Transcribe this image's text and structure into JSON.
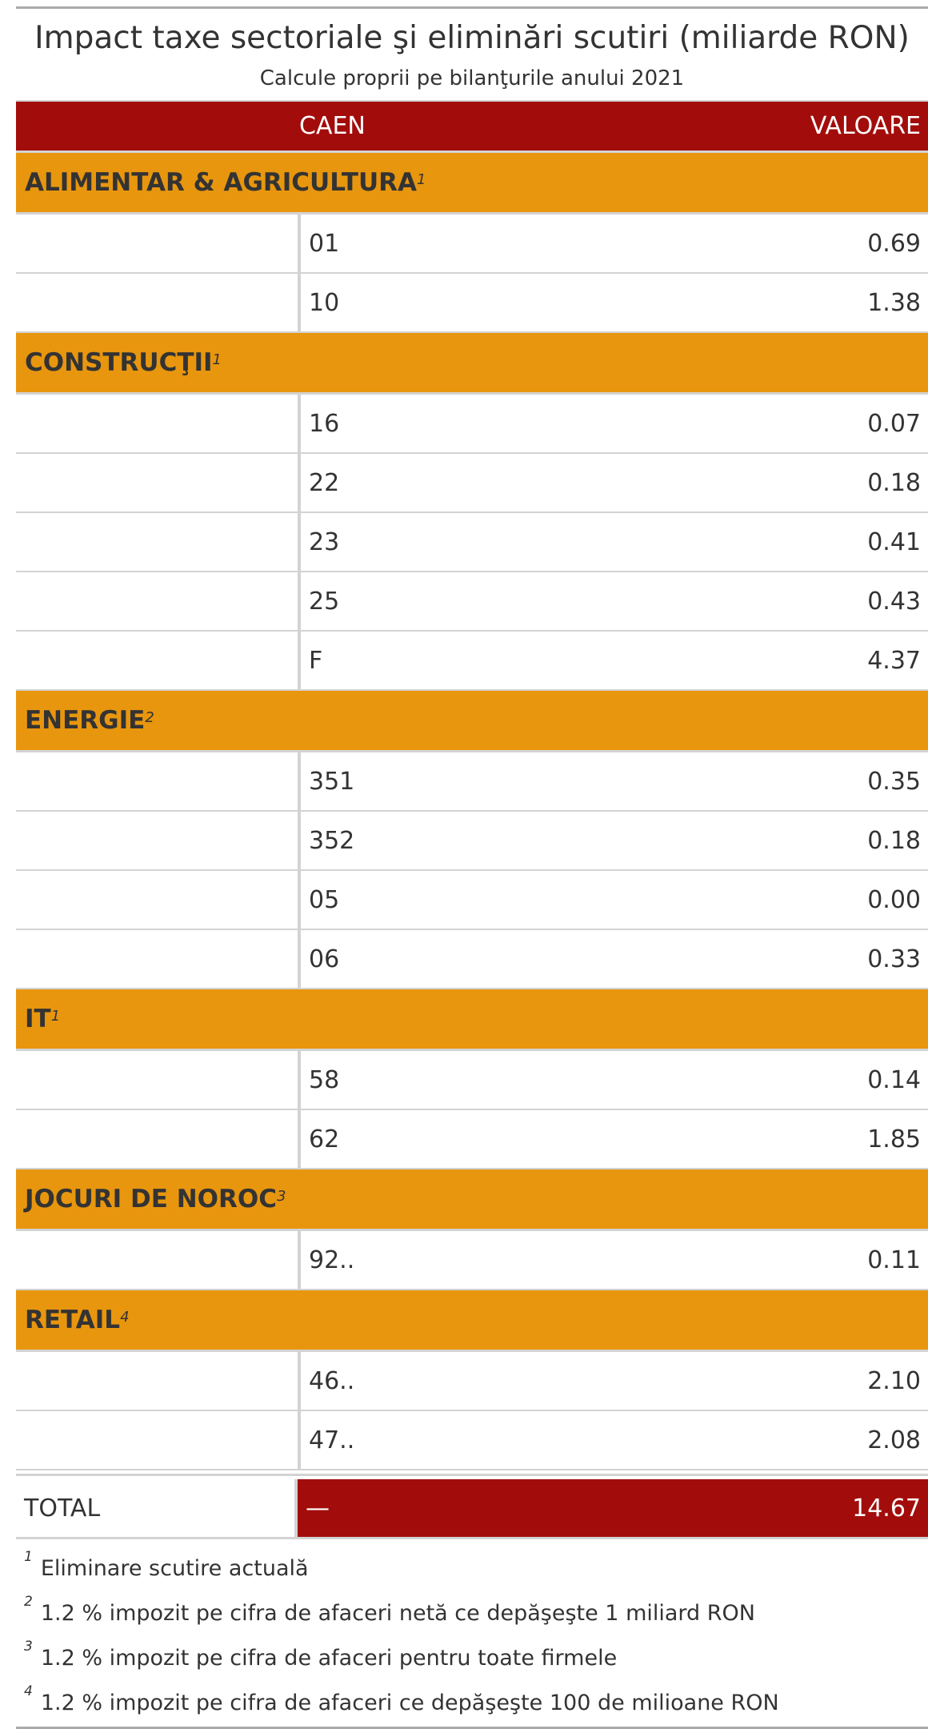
{
  "title": "Impact taxe sectoriale şi eliminări scutiri (miliarde RON)",
  "subtitle": "Calcule proprii pe bilanţurile anului 2021",
  "header": {
    "col_caen": "CAEN",
    "col_valoare": "VALOARE"
  },
  "colors": {
    "header_bg": "#a20d0b",
    "group_bg": "#e8960e",
    "total_bg": "#a20d0b"
  },
  "groups": [
    {
      "name": "ALIMENTAR & AGRICULTURA",
      "note": "1",
      "rows": [
        {
          "caen": "01",
          "value": "0.69"
        },
        {
          "caen": "10",
          "value": "1.38"
        }
      ]
    },
    {
      "name": "CONSTRUCŢII",
      "note": "1",
      "rows": [
        {
          "caen": "16",
          "value": "0.07"
        },
        {
          "caen": "22",
          "value": "0.18"
        },
        {
          "caen": "23",
          "value": "0.41"
        },
        {
          "caen": "25",
          "value": "0.43"
        },
        {
          "caen": "F",
          "value": "4.37"
        }
      ]
    },
    {
      "name": "ENERGIE",
      "note": "2",
      "rows": [
        {
          "caen": "351",
          "value": "0.35"
        },
        {
          "caen": "352",
          "value": "0.18"
        },
        {
          "caen": "05",
          "value": "0.00"
        },
        {
          "caen": "06",
          "value": "0.33"
        }
      ]
    },
    {
      "name": "IT",
      "note": "1",
      "rows": [
        {
          "caen": "58",
          "value": "0.14"
        },
        {
          "caen": "62",
          "value": "1.85"
        }
      ]
    },
    {
      "name": "JOCURI DE NOROC",
      "note": "3",
      "rows": [
        {
          "caen": "92..",
          "value": "0.11"
        }
      ]
    },
    {
      "name": "RETAIL",
      "note": "4",
      "rows": [
        {
          "caen": "46..",
          "value": "2.10"
        },
        {
          "caen": "47..",
          "value": "2.08"
        }
      ]
    }
  ],
  "total": {
    "label": "TOTAL",
    "caen": "—",
    "value": "14.67"
  },
  "footnotes": [
    {
      "mark": "1",
      "text": "Eliminare scutire actuală"
    },
    {
      "mark": "2",
      "text": "1.2 % impozit pe cifra de afaceri netă ce depăşeşte 1 miliard RON"
    },
    {
      "mark": "3",
      "text": "1.2 % impozit pe cifra de afaceri pentru toate firmele"
    },
    {
      "mark": "4",
      "text": "1.2 % impozit pe cifra de afaceri ce depăşeşte 100 de milioane RON"
    }
  ]
}
